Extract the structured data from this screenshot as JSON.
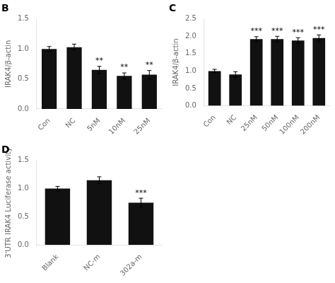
{
  "chart_data": [
    {
      "type": "bar",
      "title": "B",
      "categories": [
        "Con",
        "NC",
        "5nM",
        "10nM",
        "25nM"
      ],
      "values": [
        1.0,
        1.03,
        0.65,
        0.55,
        0.57
      ],
      "errors": [
        0.04,
        0.05,
        0.06,
        0.05,
        0.07
      ],
      "annotations": [
        {
          "x": "5nM",
          "text": "**"
        },
        {
          "x": "10nM",
          "text": "**"
        },
        {
          "x": "25nM",
          "text": "**"
        }
      ],
      "ylabel": "IRAK4/β-actin",
      "color": "#111111",
      "ylim": [
        0,
        1.5
      ],
      "yticks": [
        {
          "value": 0,
          "label": "0.0"
        },
        0.5,
        {
          "value": 1,
          "label": "1.0"
        },
        1.5
      ],
      "grid": false
    },
    {
      "type": "bar",
      "title": "C",
      "categories": [
        "Con",
        "NC",
        "25nM",
        "50nM",
        "100nM",
        "200nM"
      ],
      "values": [
        1.0,
        0.9,
        1.92,
        1.92,
        1.88,
        1.95
      ],
      "errors": [
        0.05,
        0.08,
        0.07,
        0.08,
        0.08,
        0.09
      ],
      "annotations": [
        {
          "x": "25nM",
          "text": "***"
        },
        {
          "x": "50nM",
          "text": "***"
        },
        {
          "x": "100nM",
          "text": "***"
        },
        {
          "x": "200nM",
          "text": "***"
        }
      ],
      "ylabel": "IRAK4/β-actin",
      "color": "#111111",
      "ylim": [
        0,
        2.5
      ],
      "yticks": [
        {
          "value": 0,
          "label": "0.0"
        },
        0.5,
        {
          "value": 1,
          "label": "1.0"
        },
        1.5,
        {
          "value": 2,
          "label": "2.0"
        },
        2.5
      ],
      "grid": false
    },
    {
      "type": "bar",
      "title": "D",
      "categories": [
        "Blank",
        "NC-m",
        "302a-m"
      ],
      "values": [
        1.0,
        1.15,
        0.75
      ],
      "errors": [
        0.04,
        0.06,
        0.08
      ],
      "annotations": [
        {
          "x": "302a-m",
          "text": "***"
        }
      ],
      "ylabel": "3'UTR IRAK4 Luciferase activity",
      "color": "#111111",
      "ylim": [
        0,
        1.5
      ],
      "yticks": [
        {
          "value": 0,
          "label": "0.0"
        },
        0.5,
        {
          "value": 1,
          "label": "1.0"
        },
        1.5
      ],
      "grid": false
    }
  ]
}
